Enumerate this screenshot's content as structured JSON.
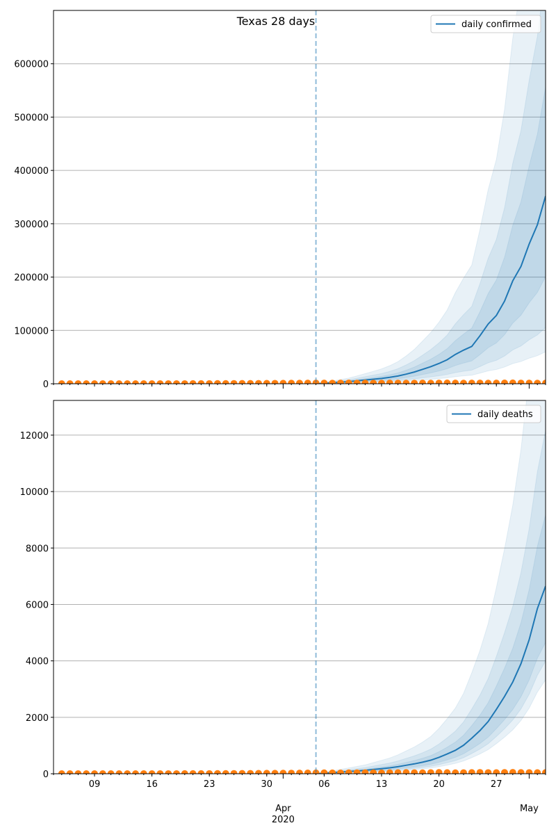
{
  "chart_data": [
    {
      "type": "line",
      "title": "Texas 28 days",
      "legend": {
        "label": "daily confirmed",
        "placement": "top-right"
      },
      "ylim": [
        0,
        700000
      ],
      "yticks": [
        0,
        100000,
        200000,
        300000,
        400000,
        500000,
        600000
      ],
      "ytick_labels": [
        "0",
        "100000",
        "200000",
        "300000",
        "400000",
        "500000",
        "600000"
      ],
      "grid": "y",
      "forecast_start": "2020-04-05",
      "observed_start": "2020-03-05",
      "observed": [
        0,
        1,
        2,
        3,
        5,
        4,
        8,
        10,
        12,
        20,
        25,
        30,
        40,
        50,
        60,
        80,
        100,
        150,
        200,
        250,
        300,
        400,
        450,
        500,
        550,
        600,
        700,
        800,
        900,
        1000,
        1100,
        1200,
        1100,
        1000,
        1200,
        1300,
        1000,
        1100,
        900,
        1000,
        1200,
        1100,
        1000,
        900,
        1100,
        1000,
        1200,
        1300,
        1100,
        1000,
        1100,
        1200,
        1000,
        1100,
        1300,
        1400,
        1200,
        1100,
        1000,
        1100
      ],
      "median": [
        0,
        1000,
        2000,
        3000,
        4000,
        5500,
        7000,
        8500,
        10000,
        12000,
        14500,
        18000,
        22000,
        27000,
        32000,
        38000,
        45000,
        55000,
        63000,
        70000,
        90000,
        112000,
        128000,
        155000,
        193000,
        220000,
        262000,
        298000,
        352000
      ],
      "interval_ratios": [
        {
          "name": "outer",
          "start": [
            0.35,
            2.5
          ],
          "end": [
            0.17,
            3.5
          ]
        },
        {
          "name": "middle",
          "start": [
            0.5,
            1.8
          ],
          "end": [
            0.3,
            2.2
          ]
        },
        {
          "name": "inner",
          "start": [
            0.7,
            1.3
          ],
          "end": [
            0.57,
            1.58
          ]
        }
      ]
    },
    {
      "type": "line",
      "legend": {
        "label": "daily deaths",
        "placement": "top-right"
      },
      "ylim": [
        0,
        13230
      ],
      "yticks": [
        0,
        2000,
        4000,
        6000,
        8000,
        10000,
        12000
      ],
      "ytick_labels": [
        "0",
        "2000",
        "4000",
        "6000",
        "8000",
        "10000",
        "12000"
      ],
      "grid": "y",
      "forecast_start": "2020-04-05",
      "observed_start": "2020-03-05",
      "observed": [
        0,
        0,
        0,
        0,
        0,
        0,
        0,
        0,
        0,
        0,
        0,
        0,
        1,
        1,
        1,
        2,
        2,
        3,
        4,
        5,
        6,
        7,
        8,
        10,
        12,
        14,
        15,
        17,
        20,
        22,
        25,
        27,
        30,
        28,
        26,
        30,
        32,
        35,
        30,
        28,
        34,
        36,
        40,
        33,
        30,
        38,
        42,
        36,
        30,
        35,
        40,
        44,
        38,
        36,
        42,
        46,
        40,
        38,
        36,
        40
      ],
      "median": [
        0,
        20,
        40,
        60,
        80,
        100,
        120,
        150,
        180,
        210,
        250,
        300,
        350,
        410,
        480,
        580,
        700,
        830,
        1010,
        1260,
        1530,
        1850,
        2280,
        2740,
        3250,
        3900,
        4750,
        5850,
        6650
      ],
      "interval_ratios": [
        {
          "name": "outer",
          "start": [
            0.35,
            2.5
          ],
          "end": [
            0.5,
            3.0
          ]
        },
        {
          "name": "middle",
          "start": [
            0.5,
            1.8
          ],
          "end": [
            0.6,
            1.83
          ]
        },
        {
          "name": "inner",
          "start": [
            0.7,
            1.3
          ],
          "end": [
            0.7,
            1.38
          ]
        }
      ]
    }
  ],
  "xaxis": {
    "start": "2020-03-04",
    "end": "2020-05-03",
    "major_ticks": [
      {
        "date": "2020-03-09",
        "label": "09"
      },
      {
        "date": "2020-03-16",
        "label": "16"
      },
      {
        "date": "2020-03-23",
        "label": "23"
      },
      {
        "date": "2020-03-30",
        "label": "30"
      },
      {
        "date": "2020-04-06",
        "label": "06"
      },
      {
        "date": "2020-04-13",
        "label": "13"
      },
      {
        "date": "2020-04-20",
        "label": "20"
      },
      {
        "date": "2020-04-27",
        "label": "27"
      }
    ],
    "month_ticks": [
      {
        "date": "2020-04-01",
        "label": "Apr",
        "sublabel": "2020"
      },
      {
        "date": "2020-05-01",
        "label": "May",
        "sublabel": ""
      }
    ]
  },
  "colors": {
    "line": "#1f77b4",
    "observed": "#ff7f0e",
    "grid": "#b0b0b0"
  }
}
